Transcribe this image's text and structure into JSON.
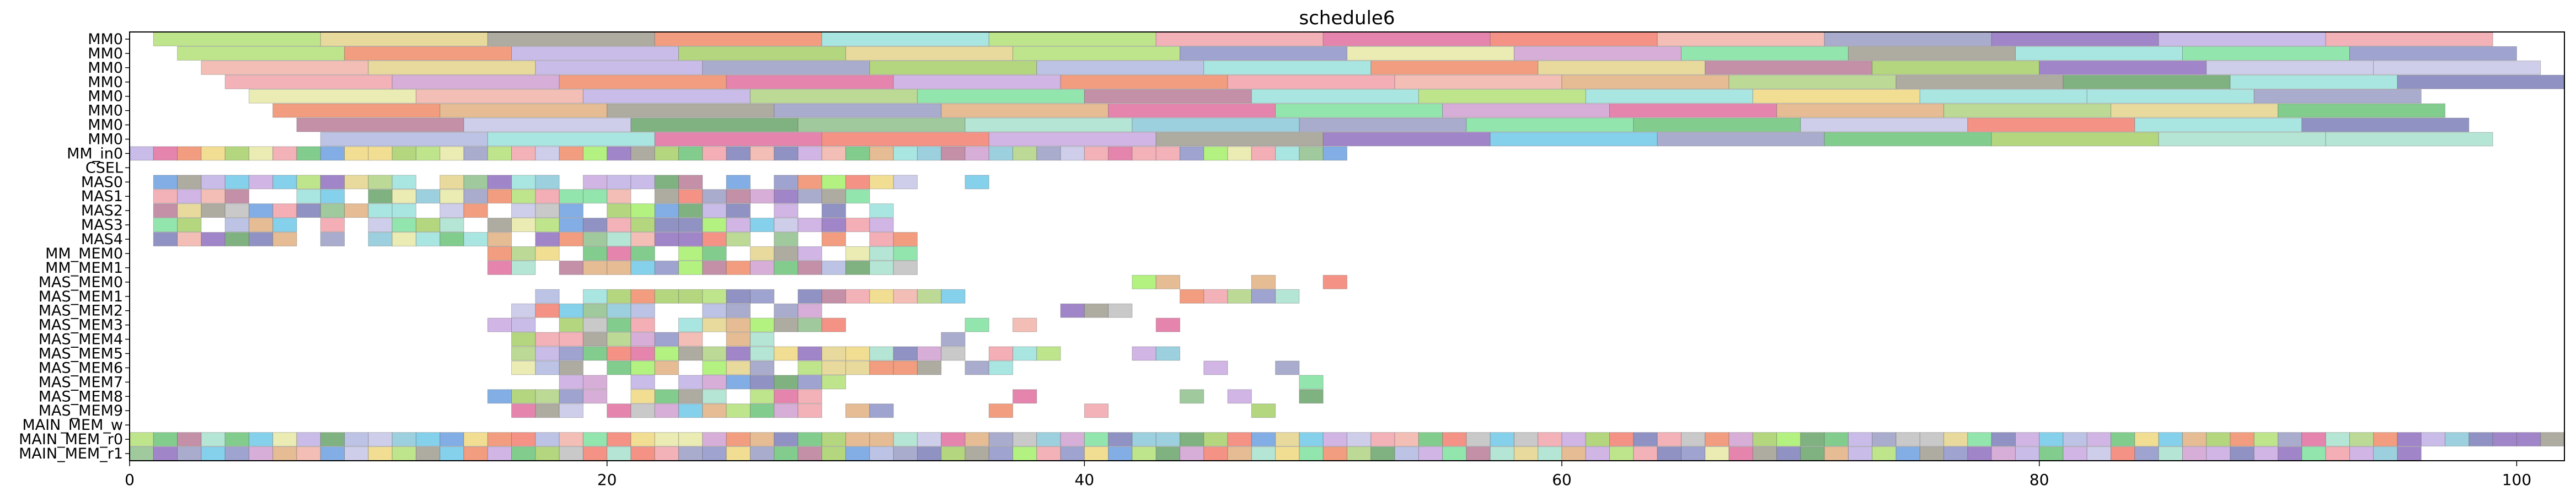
{
  "chart_data": {
    "type": "gantt",
    "title": "schedule6",
    "xlabel": "",
    "ylabel": "",
    "xlim": [
      0,
      102
    ],
    "x_ticks": [
      0,
      20,
      40,
      60,
      80,
      100
    ],
    "rows": [
      "MM0",
      "MM0",
      "MM0",
      "MM0",
      "MM0",
      "MM0",
      "MM0",
      "MM0",
      "MM_in0",
      "CSEL",
      "MAS0",
      "MAS1",
      "MAS2",
      "MAS3",
      "MAS4",
      "MM_MEM0",
      "MM_MEM1",
      "MAS_MEM0",
      "MAS_MEM1",
      "MAS_MEM2",
      "MAS_MEM3",
      "MAS_MEM4",
      "MAS_MEM5",
      "MAS_MEM6",
      "MAS_MEM7",
      "MAS_MEM8",
      "MAS_MEM9",
      "MAIN_MEM_w",
      "MAIN_MEM_r0",
      "MAIN_MEM_r1"
    ],
    "mm_rows": [
      {
        "start": 1,
        "durations": [
          7,
          7,
          7,
          7,
          7,
          7,
          7,
          7,
          7,
          7,
          7,
          7,
          7,
          7,
          7,
          7
        ]
      },
      {
        "start": 2,
        "durations": [
          7,
          7,
          7,
          7,
          7,
          7,
          7,
          7,
          7,
          7,
          7,
          7,
          7,
          7,
          7,
          7
        ]
      },
      {
        "start": 3,
        "durations": [
          7,
          7,
          7,
          7,
          7,
          7,
          7,
          7,
          7,
          7,
          7,
          7,
          7,
          7,
          7,
          7
        ]
      },
      {
        "start": 4,
        "durations": [
          7,
          7,
          7,
          7,
          7,
          7,
          7,
          7,
          7,
          7,
          7,
          7,
          7,
          7,
          7,
          7
        ]
      },
      {
        "start": 5,
        "durations": [
          7,
          7,
          7,
          7,
          7,
          7,
          7,
          7,
          7,
          7,
          7,
          7,
          7,
          7,
          7,
          7
        ]
      },
      {
        "start": 6,
        "durations": [
          7,
          7,
          7,
          7,
          7,
          7,
          7,
          7,
          7,
          7,
          7,
          7,
          7,
          7,
          7,
          7
        ]
      },
      {
        "start": 7,
        "durations": [
          7,
          7,
          7,
          7,
          7,
          7,
          7,
          7,
          7,
          7,
          7,
          7,
          7,
          7,
          7,
          7
        ]
      },
      {
        "start": 8,
        "durations": [
          7,
          7,
          7,
          7,
          7,
          7,
          7,
          7,
          7,
          7,
          7,
          7,
          7,
          7,
          7,
          7
        ]
      }
    ],
    "unit_rows": {
      "MM_in0": {
        "start": 0,
        "end": 51
      },
      "MAS0": [
        [
          1,
          33
        ],
        [
          35,
          36
        ]
      ],
      "MAS1": [
        [
          1,
          31
        ]
      ],
      "MAS2": [
        [
          1,
          32
        ]
      ],
      "MAS3": [
        [
          1,
          32
        ]
      ],
      "MAS4": [
        [
          1,
          33
        ]
      ],
      "MM_MEM0": [
        [
          15,
          33
        ]
      ],
      "MM_MEM1": [
        [
          15,
          33
        ]
      ],
      "MAS_MEM0": [
        [
          42,
          44
        ],
        [
          47,
          48
        ],
        [
          50,
          51
        ]
      ],
      "MAS_MEM1": [
        [
          16,
          35
        ],
        [
          44,
          49
        ]
      ],
      "MAS_MEM2": [
        [
          16,
          29
        ],
        [
          38,
          42
        ]
      ],
      "MAS_MEM3": [
        [
          15,
          30
        ],
        [
          34,
          36
        ],
        [
          37,
          38
        ],
        [
          43,
          44
        ]
      ],
      "MAS_MEM4": [
        [
          16,
          24
        ],
        [
          25,
          28
        ],
        [
          34,
          35
        ]
      ],
      "MAS_MEM5": [
        [
          16,
          33
        ],
        [
          33,
          35
        ],
        [
          36,
          39
        ],
        [
          42,
          44
        ]
      ],
      "MAS_MEM6": [
        [
          16,
          37
        ],
        [
          45,
          46
        ],
        [
          48,
          49
        ]
      ],
      "MAS_MEM7": [
        [
          18,
          30
        ],
        [
          49,
          51
        ]
      ],
      "MAS_MEM8": [
        [
          15,
          30
        ],
        [
          37,
          38
        ],
        [
          44,
          45
        ],
        [
          46,
          47
        ],
        [
          49,
          50
        ]
      ],
      "MAS_MEM9": [
        [
          16,
          32
        ],
        [
          36,
          37
        ],
        [
          40,
          41
        ],
        [
          47,
          48
        ]
      ],
      "MAIN_MEM_r0": {
        "start": 0,
        "end": 102
      },
      "MAIN_MEM_r1": {
        "start": 0,
        "end": 96
      }
    },
    "grid": false,
    "legend": "none"
  }
}
